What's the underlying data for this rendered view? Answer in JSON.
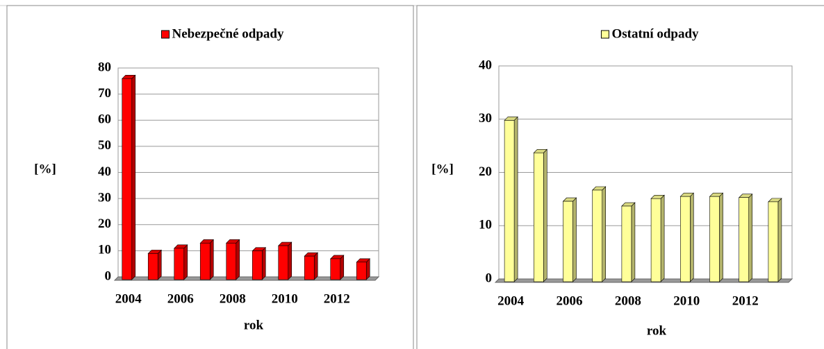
{
  "chart_data": [
    {
      "type": "bar",
      "xlabel": "rok",
      "ylabel": "[%]",
      "categories": [
        "2004",
        null,
        "2006",
        null,
        "2008",
        null,
        "2010",
        null,
        "2012",
        null
      ],
      "series": [
        {
          "name": "Nebezpečné odpady",
          "color": "#ff0000",
          "values": [
            77,
            10,
            12,
            14,
            14,
            11,
            13,
            9,
            8,
            6.7
          ]
        }
      ],
      "ylim": [
        0,
        80
      ],
      "yticks": [
        0,
        10,
        20,
        30,
        40,
        50,
        60,
        70,
        80
      ],
      "grid": true,
      "legend": "top"
    },
    {
      "type": "bar",
      "xlabel": "rok",
      "ylabel": "[%]",
      "categories": [
        "2004",
        null,
        "2006",
        null,
        "2008",
        null,
        "2010",
        null,
        "2012",
        null
      ],
      "series": [
        {
          "name": "Ostatní odpady",
          "color": "#ffff99",
          "values": [
            30.3,
            24.2,
            15.1,
            17.2,
            14.2,
            15.6,
            16,
            16,
            15.8,
            15
          ]
        }
      ],
      "ylim": [
        0,
        40
      ],
      "yticks": [
        0,
        10,
        20,
        30,
        40
      ],
      "grid": true,
      "legend": "top"
    }
  ]
}
